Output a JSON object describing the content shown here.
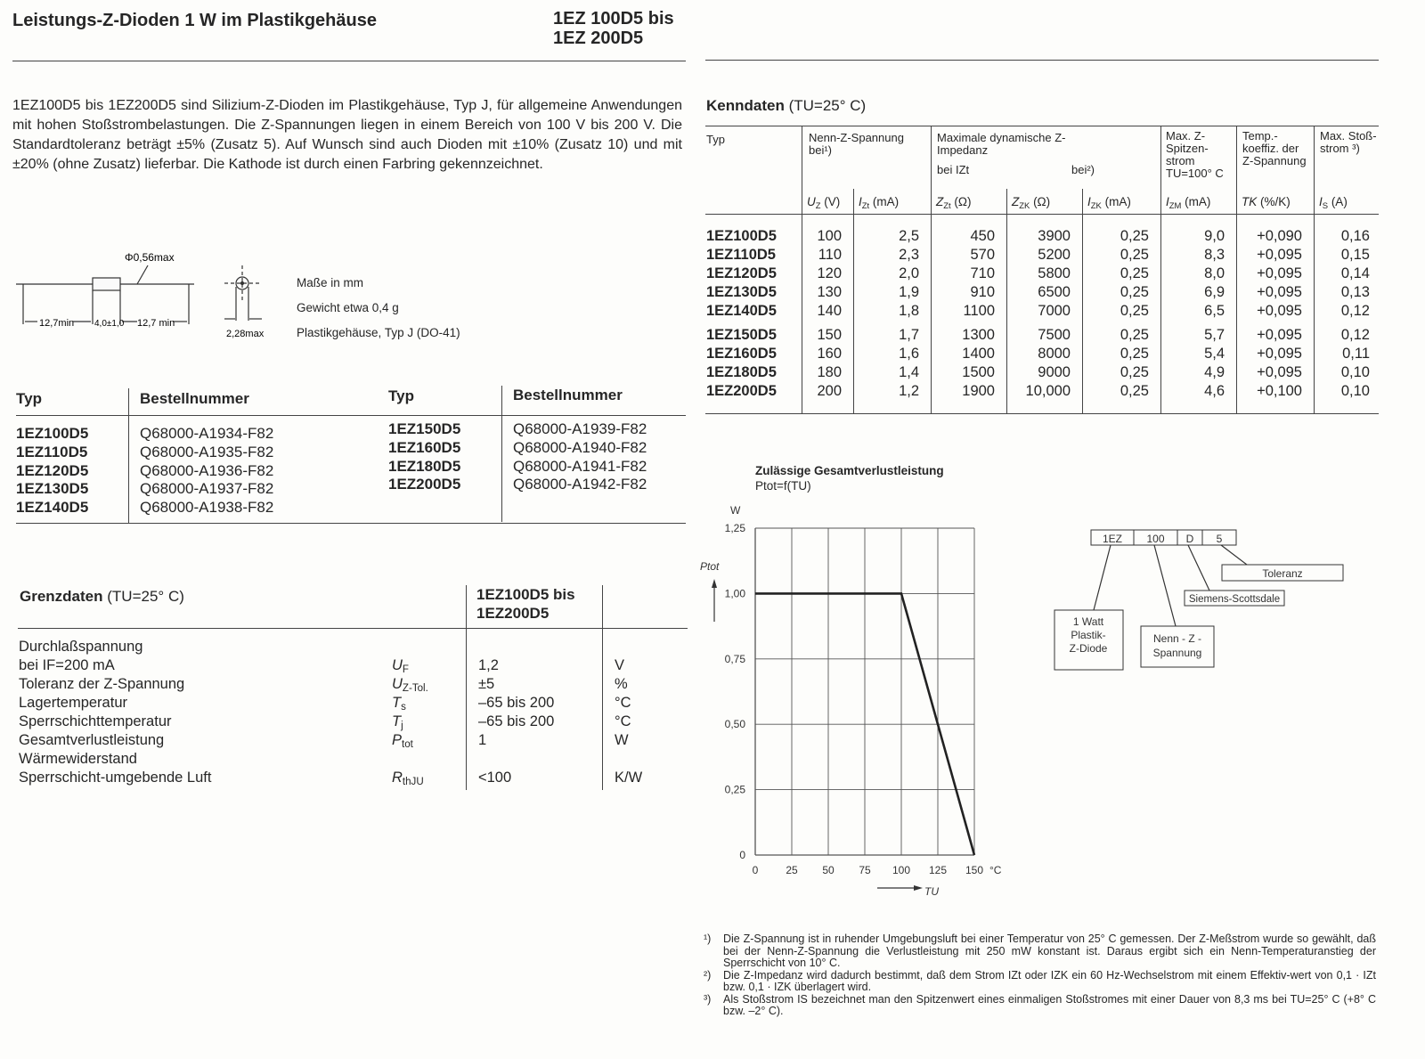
{
  "header": {
    "title": "Leistungs-Z-Dioden 1 W im Plastikgehäuse",
    "range_line1": "1EZ 100D5 bis",
    "range_line2": "1EZ 200D5"
  },
  "intro": "1EZ100D5 bis 1EZ200D5 sind Silizium-Z-Dioden im Plastikgehäuse, Typ J, für allgemeine Anwendungen mit hohen Stoßstrombelastungen. Die Z-Spannungen liegen in einem Bereich von 100 V bis 200 V. Die Standardtoleranz beträgt ±5% (Zusatz 5). Auf Wunsch sind auch Dioden mit ±10% (Zusatz 10) und mit ±20% (ohne Zusatz) lieferbar. Die Kathode ist durch einen Farbring gekennzeichnet.",
  "package": {
    "diameter": "Φ0,56max",
    "lead_left": "12,7min",
    "body_len": "4,0±1,0",
    "lead_right": "12,7 min",
    "body_dia": "2,28max",
    "units": "Maße in mm",
    "weight": "Gewicht etwa 0,4 g",
    "case": "Plastikgehäuse, Typ J (DO-41)"
  },
  "order_table": {
    "headers": [
      "Typ",
      "Bestellnummer",
      "Typ",
      "Bestellnummer"
    ],
    "left": [
      [
        "1EZ100D5",
        "Q68000-A1934-F82"
      ],
      [
        "1EZ110D5",
        "Q68000-A1935-F82"
      ],
      [
        "1EZ120D5",
        "Q68000-A1936-F82"
      ],
      [
        "1EZ130D5",
        "Q68000-A1937-F82"
      ],
      [
        "1EZ140D5",
        "Q68000-A1938-F82"
      ]
    ],
    "right": [
      [
        "1EZ150D5",
        "Q68000-A1939-F82"
      ],
      [
        "1EZ160D5",
        "Q68000-A1940-F82"
      ],
      [
        "1EZ180D5",
        "Q68000-A1941-F82"
      ],
      [
        "1EZ200D5",
        "Q68000-A1942-F82"
      ]
    ]
  },
  "limits": {
    "title": "Grenzdaten",
    "condition": "(TU=25° C)",
    "col_line1": "1EZ100D5 bis",
    "col_line2": "1EZ200D5",
    "rows": [
      {
        "label": "Durchlaßspannung",
        "sym": "",
        "sub": "",
        "value": "",
        "unit": ""
      },
      {
        "label": "bei IF=200 mA",
        "sym": "U",
        "sub": "F",
        "value": "1,2",
        "unit": "V"
      },
      {
        "label": "Toleranz der Z-Spannung",
        "sym": "U",
        "sub": "Z-Tol.",
        "value": "±5",
        "unit": "%"
      },
      {
        "label": "Lagertemperatur",
        "sym": "T",
        "sub": "s",
        "value": "–65 bis 200",
        "unit": "°C"
      },
      {
        "label": "Sperrschichttemperatur",
        "sym": "T",
        "sub": "j",
        "value": "–65 bis 200",
        "unit": "°C"
      },
      {
        "label": "Gesamtverlustleistung",
        "sym": "P",
        "sub": "tot",
        "value": "1",
        "unit": "W"
      },
      {
        "label": "Wärmewiderstand",
        "sym": "",
        "sub": "",
        "value": "",
        "unit": ""
      },
      {
        "label": "Sperrschicht-umgebende Luft",
        "sym": "R",
        "sub": "thJU",
        "value": "<100",
        "unit": "K/W"
      }
    ]
  },
  "kenndaten": {
    "title": "Kenndaten",
    "condition": "(TU=25° C)",
    "group_headers": {
      "typ": "Typ",
      "nenn": "Nenn-Z-Spannung bei¹)",
      "imp": "Maximale dynamische Z-Impedanz",
      "imp_bei_izt": "bei IZt",
      "imp_bei2": "bei²)",
      "izm": "Max. Z-Spitzen-strom TU=100° C",
      "tk": "Temp.-koeffiz. der Z-Spannung",
      "is": "Max. Stoß-strom ³)"
    },
    "unit_headers": [
      {
        "sym": "U",
        "sub": "Z",
        "unit": " (V)"
      },
      {
        "sym": "I",
        "sub": "Zt",
        "unit": " (mA)"
      },
      {
        "sym": "Z",
        "sub": "Zt",
        "unit": " (Ω)"
      },
      {
        "sym": "Z",
        "sub": "ZK",
        "unit": " (Ω)"
      },
      {
        "sym": "I",
        "sub": "ZK",
        "unit": " (mA)"
      },
      {
        "sym": "I",
        "sub": "ZM",
        "unit": " (mA)"
      },
      {
        "sym": "TK",
        "sub": "",
        "unit": " (%/K)"
      },
      {
        "sym": "I",
        "sub": "S",
        "unit": " (A)"
      }
    ],
    "rows": [
      [
        "1EZ100D5",
        "100",
        "2,5",
        "450",
        "3900",
        "0,25",
        "9,0",
        "+0,090",
        "0,16"
      ],
      [
        "1EZ110D5",
        "110",
        "2,3",
        "570",
        "5200",
        "0,25",
        "8,3",
        "+0,095",
        "0,15"
      ],
      [
        "1EZ120D5",
        "120",
        "2,0",
        "710",
        "5800",
        "0,25",
        "8,0",
        "+0,095",
        "0,14"
      ],
      [
        "1EZ130D5",
        "130",
        "1,9",
        "910",
        "6500",
        "0,25",
        "6,9",
        "+0,095",
        "0,13"
      ],
      [
        "1EZ140D5",
        "140",
        "1,8",
        "1100",
        "7000",
        "0,25",
        "6,5",
        "+0,095",
        "0,12"
      ],
      [
        "1EZ150D5",
        "150",
        "1,7",
        "1300",
        "7500",
        "0,25",
        "5,7",
        "+0,095",
        "0,12"
      ],
      [
        "1EZ160D5",
        "160",
        "1,6",
        "1400",
        "8000",
        "0,25",
        "5,4",
        "+0,095",
        "0,11"
      ],
      [
        "1EZ180D5",
        "180",
        "1,4",
        "1500",
        "9000",
        "0,25",
        "4,9",
        "+0,095",
        "0,10"
      ],
      [
        "1EZ200D5",
        "200",
        "1,2",
        "1900",
        "10,000",
        "0,25",
        "4,6",
        "+0,100",
        "0,10"
      ]
    ]
  },
  "chart_data": {
    "type": "line",
    "title": "Zulässige Gesamtverlustleistung",
    "subtitle": "Ptot=f(TU)",
    "xlabel": "TU",
    "xunit": "°C",
    "ylabel": "Ptot",
    "yunit": "W",
    "xlim": [
      0,
      150
    ],
    "ylim": [
      0,
      1.25
    ],
    "xticks": [
      "0",
      "25",
      "50",
      "75",
      "100",
      "125",
      "150"
    ],
    "yticks": [
      "0",
      "0,25",
      "0,50",
      "0,75",
      "1,00",
      "1,25"
    ],
    "grid": true,
    "series": [
      {
        "x": [
          0,
          100,
          150
        ],
        "y": [
          1.0,
          1.0,
          0
        ]
      }
    ]
  },
  "code_diagram": {
    "parts": [
      "1EZ",
      "100",
      "D",
      "5"
    ],
    "labels": {
      "type": [
        "1 Watt",
        "Plastik-",
        "Z-Diode"
      ],
      "voltage": [
        "Nenn - Z -",
        "Spannung"
      ],
      "maker": "Siemens-Scottsdale",
      "tolerance": "Toleranz"
    }
  },
  "footnotes": [
    {
      "mark": "¹)",
      "text": "Die Z-Spannung ist in ruhender Umgebungsluft bei einer Temperatur von 25° C gemessen. Der Z-Meßstrom wurde so gewählt, daß bei der Nenn-Z-Spannung die Verlustleistung mit 250 mW konstant ist. Daraus ergibt sich ein Nenn-Temperaturanstieg der Sperrschicht von 10° C."
    },
    {
      "mark": "²)",
      "text": "Die Z-Impedanz wird dadurch bestimmt, daß dem Strom IZt oder IZK ein 60 Hz-Wechselstrom mit einem Effektiv-wert von 0,1 · IZt bzw. 0,1 · IZK überlagert wird."
    },
    {
      "mark": "³)",
      "text": "Als Stoßstrom IS bezeichnet man den Spitzenwert eines einmaligen Stoßstromes mit einer Dauer von 8,3 ms bei TU=25° C (+8° C bzw. –2° C)."
    }
  ]
}
